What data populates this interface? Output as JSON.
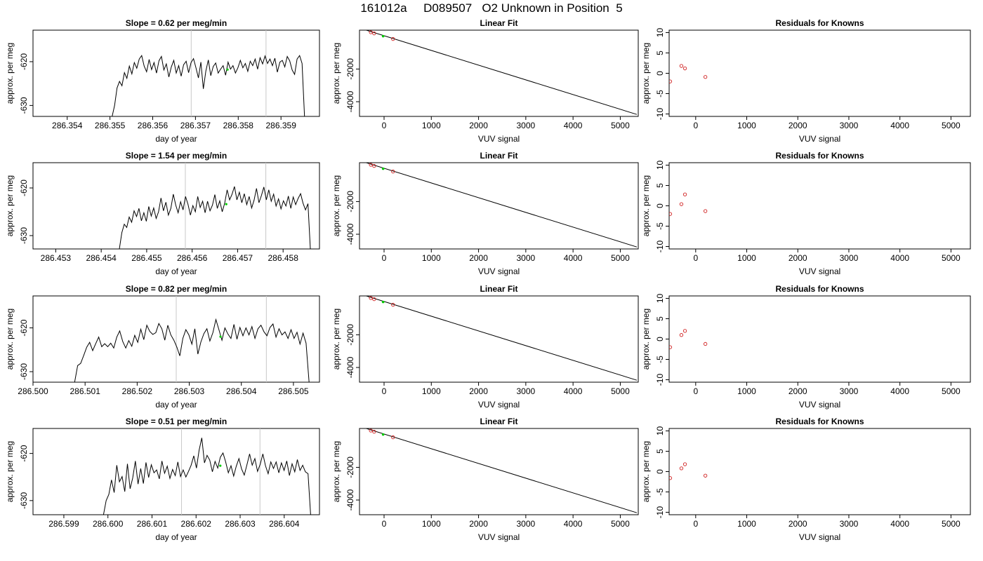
{
  "title": "161012a     D089507   O2 Unknown in Position  5",
  "chart_data": [
    {
      "type": "line",
      "row": 1,
      "title": "Slope =  0.62  per meg/min",
      "xlabel": "day of year",
      "ylabel": "approx. per meg",
      "xlim": [
        286.3532,
        286.3599
      ],
      "ylim": [
        -632.5,
        -612.8
      ],
      "xticks": [
        "286.354",
        "286.355",
        "286.356",
        "286.357",
        "286.358",
        "286.359"
      ],
      "yticks": [
        "-630",
        "-620"
      ],
      "vlines": [
        286.3569,
        286.35865
      ],
      "highlight": {
        "x": 286.35775,
        "y": -621.8
      },
      "series": [
        {
          "x_start": 286.35505,
          "x_end": 286.35955,
          "values": [
            -632.5,
            -630,
            -626,
            -624.5,
            -625.5,
            -622.5,
            -623.8,
            -621,
            -622.8,
            -620.2,
            -621.5,
            -619.4,
            -618.6,
            -621,
            -622.3,
            -619.5,
            -621.8,
            -620.2,
            -622.6,
            -619.8,
            -618.8,
            -621.9,
            -620.5,
            -623.5,
            -621.2,
            -619.7,
            -622.6,
            -620.9,
            -623.3,
            -620.7,
            -619.9,
            -622.5,
            -620.2,
            -619.3,
            -621.4,
            -623.7,
            -620.1,
            -626.2,
            -622.1,
            -619.6,
            -623.2,
            -621.1,
            -620.3,
            -622.6,
            -621.7,
            -620.9,
            -623.1,
            -620.1,
            -621.7,
            -620.9,
            -622.6,
            -621.4,
            -619.7,
            -621.4,
            -620.4,
            -622.2,
            -619.9,
            -620.9,
            -619.4,
            -621.7,
            -619.1,
            -620.5,
            -618.7,
            -620.4,
            -619.4,
            -620.9,
            -619.2,
            -622.4,
            -620.1,
            -619.7,
            -621.2,
            -618.8,
            -619.8,
            -621.9,
            -622.9,
            -619.4,
            -618.6,
            -620.4,
            -632.5
          ]
        }
      ]
    },
    {
      "type": "scatter",
      "row": 1,
      "title": "Linear Fit",
      "xlabel": "VUV signal",
      "ylabel": "approx. per meg",
      "xlim": [
        -520,
        5380
      ],
      "ylim": [
        -4900,
        380
      ],
      "xticks": [
        0,
        1000,
        2000,
        3000,
        4000,
        5000
      ],
      "yticks": [
        -4000,
        -2000
      ],
      "fit_line": {
        "x": [
          -500,
          5350
        ],
        "y": [
          490,
          -4780
        ]
      },
      "known_points": {
        "x": [
          -500,
          -280,
          -210,
          190
        ],
        "y": [
          490,
          250,
          180,
          -160
        ]
      },
      "unknown_point": {
        "x": -20,
        "y": 10
      }
    },
    {
      "type": "scatter",
      "row": 1,
      "title": "Residuals for Knowns",
      "xlabel": "VUV signal",
      "ylabel": "approx. per meg",
      "xlim": [
        -520,
        5380
      ],
      "ylim": [
        -10.6,
        10.6
      ],
      "xticks": [
        0,
        1000,
        2000,
        3000,
        4000,
        5000
      ],
      "yticks": [
        -10,
        -5,
        0,
        5,
        10
      ],
      "x": [
        -500,
        -280,
        -210,
        190
      ],
      "y": [
        -2.0,
        1.8,
        1.2,
        -0.9
      ]
    },
    {
      "type": "line",
      "row": 2,
      "title": "Slope =  1.54  per meg/min",
      "xlabel": "day of year",
      "ylabel": "approx. per meg",
      "xlim": [
        286.4525,
        286.4588
      ],
      "ylim": [
        -632.8,
        -614.7
      ],
      "xticks": [
        "286.453",
        "286.454",
        "286.455",
        "286.456",
        "286.457",
        "286.458"
      ],
      "yticks": [
        "-630",
        "-620"
      ],
      "vlines": [
        286.45585,
        286.45762
      ],
      "highlight": {
        "x": 286.45675,
        "y": -623.4
      },
      "series": [
        {
          "x_start": 286.4544,
          "x_end": 286.4586,
          "values": [
            -632.8,
            -629.4,
            -627.6,
            -628.3,
            -626.1,
            -627.2,
            -624.8,
            -626,
            -624.3,
            -626.9,
            -625.2,
            -627,
            -623.9,
            -625.9,
            -624.2,
            -626.4,
            -625,
            -622.1,
            -624.8,
            -623,
            -625.7,
            -624.3,
            -621.3,
            -623.6,
            -625.2,
            -622.9,
            -624.6,
            -621.8,
            -623.4,
            -625.7,
            -623.7,
            -625,
            -621.8,
            -624.1,
            -622.8,
            -625.2,
            -622.8,
            -624.8,
            -623.6,
            -621.4,
            -624.3,
            -622.7,
            -625,
            -623.2,
            -620.4,
            -622.5,
            -621.3,
            -619.7,
            -622.5,
            -620.9,
            -623.1,
            -621.2,
            -623.5,
            -621.8,
            -624.2,
            -622.6,
            -620.1,
            -623.1,
            -621.6,
            -619.8,
            -622.5,
            -620.4,
            -622.8,
            -621.3,
            -623.8,
            -622.3,
            -624.4,
            -622.7,
            -623.8,
            -621.7,
            -624.3,
            -621.9,
            -623.5,
            -622.2,
            -621.2,
            -623.2,
            -624.6,
            -623.3,
            -632.8
          ]
        }
      ]
    },
    {
      "type": "scatter",
      "row": 2,
      "title": "Linear Fit",
      "xlabel": "VUV signal",
      "ylabel": "approx. per meg",
      "xlim": [
        -520,
        5380
      ],
      "ylim": [
        -4900,
        380
      ],
      "xticks": [
        0,
        1000,
        2000,
        3000,
        4000,
        5000
      ],
      "yticks": [
        -4000,
        -2000
      ],
      "fit_line": {
        "x": [
          -500,
          5350
        ],
        "y": [
          490,
          -4780
        ]
      },
      "known_points": {
        "x": [
          -500,
          -280,
          -210,
          190
        ],
        "y": [
          490,
          250,
          180,
          -160
        ]
      },
      "unknown_point": {
        "x": -20,
        "y": 10
      }
    },
    {
      "type": "scatter",
      "row": 2,
      "title": "Residuals for Knowns",
      "xlabel": "VUV signal",
      "ylabel": "approx. per meg",
      "xlim": [
        -520,
        5380
      ],
      "ylim": [
        -10.6,
        10.6
      ],
      "xticks": [
        0,
        1000,
        2000,
        3000,
        4000,
        5000
      ],
      "yticks": [
        -10,
        -5,
        0,
        5,
        10
      ],
      "x": [
        -500,
        -280,
        -210,
        190
      ],
      "y": [
        -2.0,
        0.4,
        2.8,
        -1.3
      ]
    },
    {
      "type": "line",
      "row": 3,
      "title": "Slope =  0.82  per meg/min",
      "xlabel": "day of year",
      "ylabel": "approx. per meg",
      "xlim": [
        286.5,
        286.5055
      ],
      "ylim": [
        -632.4,
        -612.7
      ],
      "xticks": [
        "286.500",
        "286.501",
        "286.502",
        "286.503",
        "286.504",
        "286.505"
      ],
      "yticks": [
        "-630",
        "-620"
      ],
      "vlines": [
        286.50275,
        286.50448
      ],
      "highlight": {
        "x": 286.5036,
        "y": -622.0
      },
      "series": [
        {
          "x_start": 286.5008,
          "x_end": 286.5053,
          "values": [
            -632.4,
            -628.6,
            -628.1,
            -626.3,
            -624.4,
            -623.3,
            -625.2,
            -623.6,
            -622.1,
            -624.3,
            -623.6,
            -624.3,
            -623.5,
            -624.6,
            -622.1,
            -620.7,
            -623.1,
            -624.6,
            -622.9,
            -624.2,
            -621.7,
            -623.3,
            -620.3,
            -622.7,
            -619.4,
            -620.8,
            -621.5,
            -621.1,
            -619,
            -620.2,
            -622.8,
            -619.4,
            -621.6,
            -622.8,
            -624.4,
            -626.4,
            -622.4,
            -620.4,
            -621.6,
            -623.7,
            -620.2,
            -626,
            -623.2,
            -621.3,
            -620.2,
            -623,
            -621.1,
            -618.1,
            -620.4,
            -622.8,
            -620,
            -621.4,
            -622.4,
            -619.2,
            -622.6,
            -619.9,
            -621.8,
            -620,
            -621.6,
            -619.7,
            -622.4,
            -620.2,
            -619.4,
            -620.9,
            -621.8,
            -619.9,
            -619.1,
            -622.1,
            -620.2,
            -621.6,
            -620.9,
            -622.4,
            -620.4,
            -622.4,
            -621,
            -623.7,
            -621.2,
            -623.5,
            -632.4
          ]
        }
      ]
    },
    {
      "type": "scatter",
      "row": 3,
      "title": "Linear Fit",
      "xlabel": "VUV signal",
      "ylabel": "approx. per meg",
      "xlim": [
        -520,
        5380
      ],
      "ylim": [
        -4900,
        380
      ],
      "xticks": [
        0,
        1000,
        2000,
        3000,
        4000,
        5000
      ],
      "yticks": [
        -4000,
        -2000
      ],
      "fit_line": {
        "x": [
          -500,
          5350
        ],
        "y": [
          490,
          -4780
        ]
      },
      "known_points": {
        "x": [
          -500,
          -280,
          -210,
          190
        ],
        "y": [
          490,
          250,
          180,
          -160
        ]
      },
      "unknown_point": {
        "x": -20,
        "y": 10
      }
    },
    {
      "type": "scatter",
      "row": 3,
      "title": "Residuals for Knowns",
      "xlabel": "VUV signal",
      "ylabel": "approx. per meg",
      "xlim": [
        -520,
        5380
      ],
      "ylim": [
        -10.6,
        10.6
      ],
      "xticks": [
        0,
        1000,
        2000,
        3000,
        4000,
        5000
      ],
      "yticks": [
        -10,
        -5,
        0,
        5,
        10
      ],
      "x": [
        -500,
        -280,
        -210,
        190
      ],
      "y": [
        -2.0,
        1.0,
        2.0,
        -1.2
      ]
    },
    {
      "type": "line",
      "row": 4,
      "title": "Slope =  0.51  per meg/min",
      "xlabel": "day of year",
      "ylabel": "approx. per meg",
      "xlim": [
        286.5983,
        286.6048
      ],
      "ylim": [
        -633,
        -614.7
      ],
      "xticks": [
        "286.599",
        "286.600",
        "286.601",
        "286.602",
        "286.603",
        "286.604"
      ],
      "yticks": [
        "-630",
        "-620"
      ],
      "vlines": [
        286.60167,
        286.60345
      ],
      "highlight": {
        "x": 286.60255,
        "y": -622.6
      },
      "series": [
        {
          "x_start": 286.5999,
          "x_end": 286.6046,
          "values": [
            -633,
            -630,
            -628.7,
            -625.6,
            -628.3,
            -622.5,
            -626,
            -624.9,
            -628.1,
            -622.2,
            -627.5,
            -625.2,
            -621.6,
            -626.5,
            -623.2,
            -626.4,
            -621.9,
            -625.1,
            -622.4,
            -624.1,
            -623.5,
            -625.4,
            -621.6,
            -624.2,
            -622.7,
            -625.3,
            -623.4,
            -624.7,
            -621.8,
            -624.9,
            -623.5,
            -625,
            -623.8,
            -622.5,
            -620.5,
            -623.1,
            -619.3,
            -616.7,
            -622,
            -620.4,
            -621.4,
            -623.9,
            -621.7,
            -623.1,
            -620.8,
            -619.9,
            -621.8,
            -624.1,
            -622.6,
            -624.8,
            -622.7,
            -621.1,
            -623.3,
            -624.6,
            -622.4,
            -620.1,
            -622.5,
            -621.1,
            -623.8,
            -622.3,
            -620.1,
            -622.6,
            -624.3,
            -621.8,
            -623.2,
            -621.8,
            -624.1,
            -622,
            -623.6,
            -621.6,
            -624.7,
            -622.2,
            -623.9,
            -621.3,
            -623.6,
            -622.5,
            -623.9,
            -624.3,
            -633
          ]
        }
      ]
    },
    {
      "type": "scatter",
      "row": 4,
      "title": "Linear Fit",
      "xlabel": "VUV signal",
      "ylabel": "approx. per meg",
      "xlim": [
        -520,
        5380
      ],
      "ylim": [
        -4900,
        380
      ],
      "xticks": [
        0,
        1000,
        2000,
        3000,
        4000,
        5000
      ],
      "yticks": [
        -4000,
        -2000
      ],
      "fit_line": {
        "x": [
          -500,
          5350
        ],
        "y": [
          490,
          -4780
        ]
      },
      "known_points": {
        "x": [
          -500,
          -280,
          -210,
          190
        ],
        "y": [
          490,
          250,
          180,
          -160
        ]
      },
      "unknown_point": {
        "x": -20,
        "y": 10
      }
    },
    {
      "type": "scatter",
      "row": 4,
      "title": "Residuals for Knowns",
      "xlabel": "VUV signal",
      "ylabel": "approx. per meg",
      "xlim": [
        -520,
        5380
      ],
      "ylim": [
        -10.6,
        10.6
      ],
      "xticks": [
        0,
        1000,
        2000,
        3000,
        4000,
        5000
      ],
      "yticks": [
        -10,
        -5,
        0,
        5,
        10
      ],
      "x": [
        -500,
        -280,
        -210,
        190
      ],
      "y": [
        -1.6,
        0.8,
        1.8,
        -1.0
      ]
    }
  ]
}
